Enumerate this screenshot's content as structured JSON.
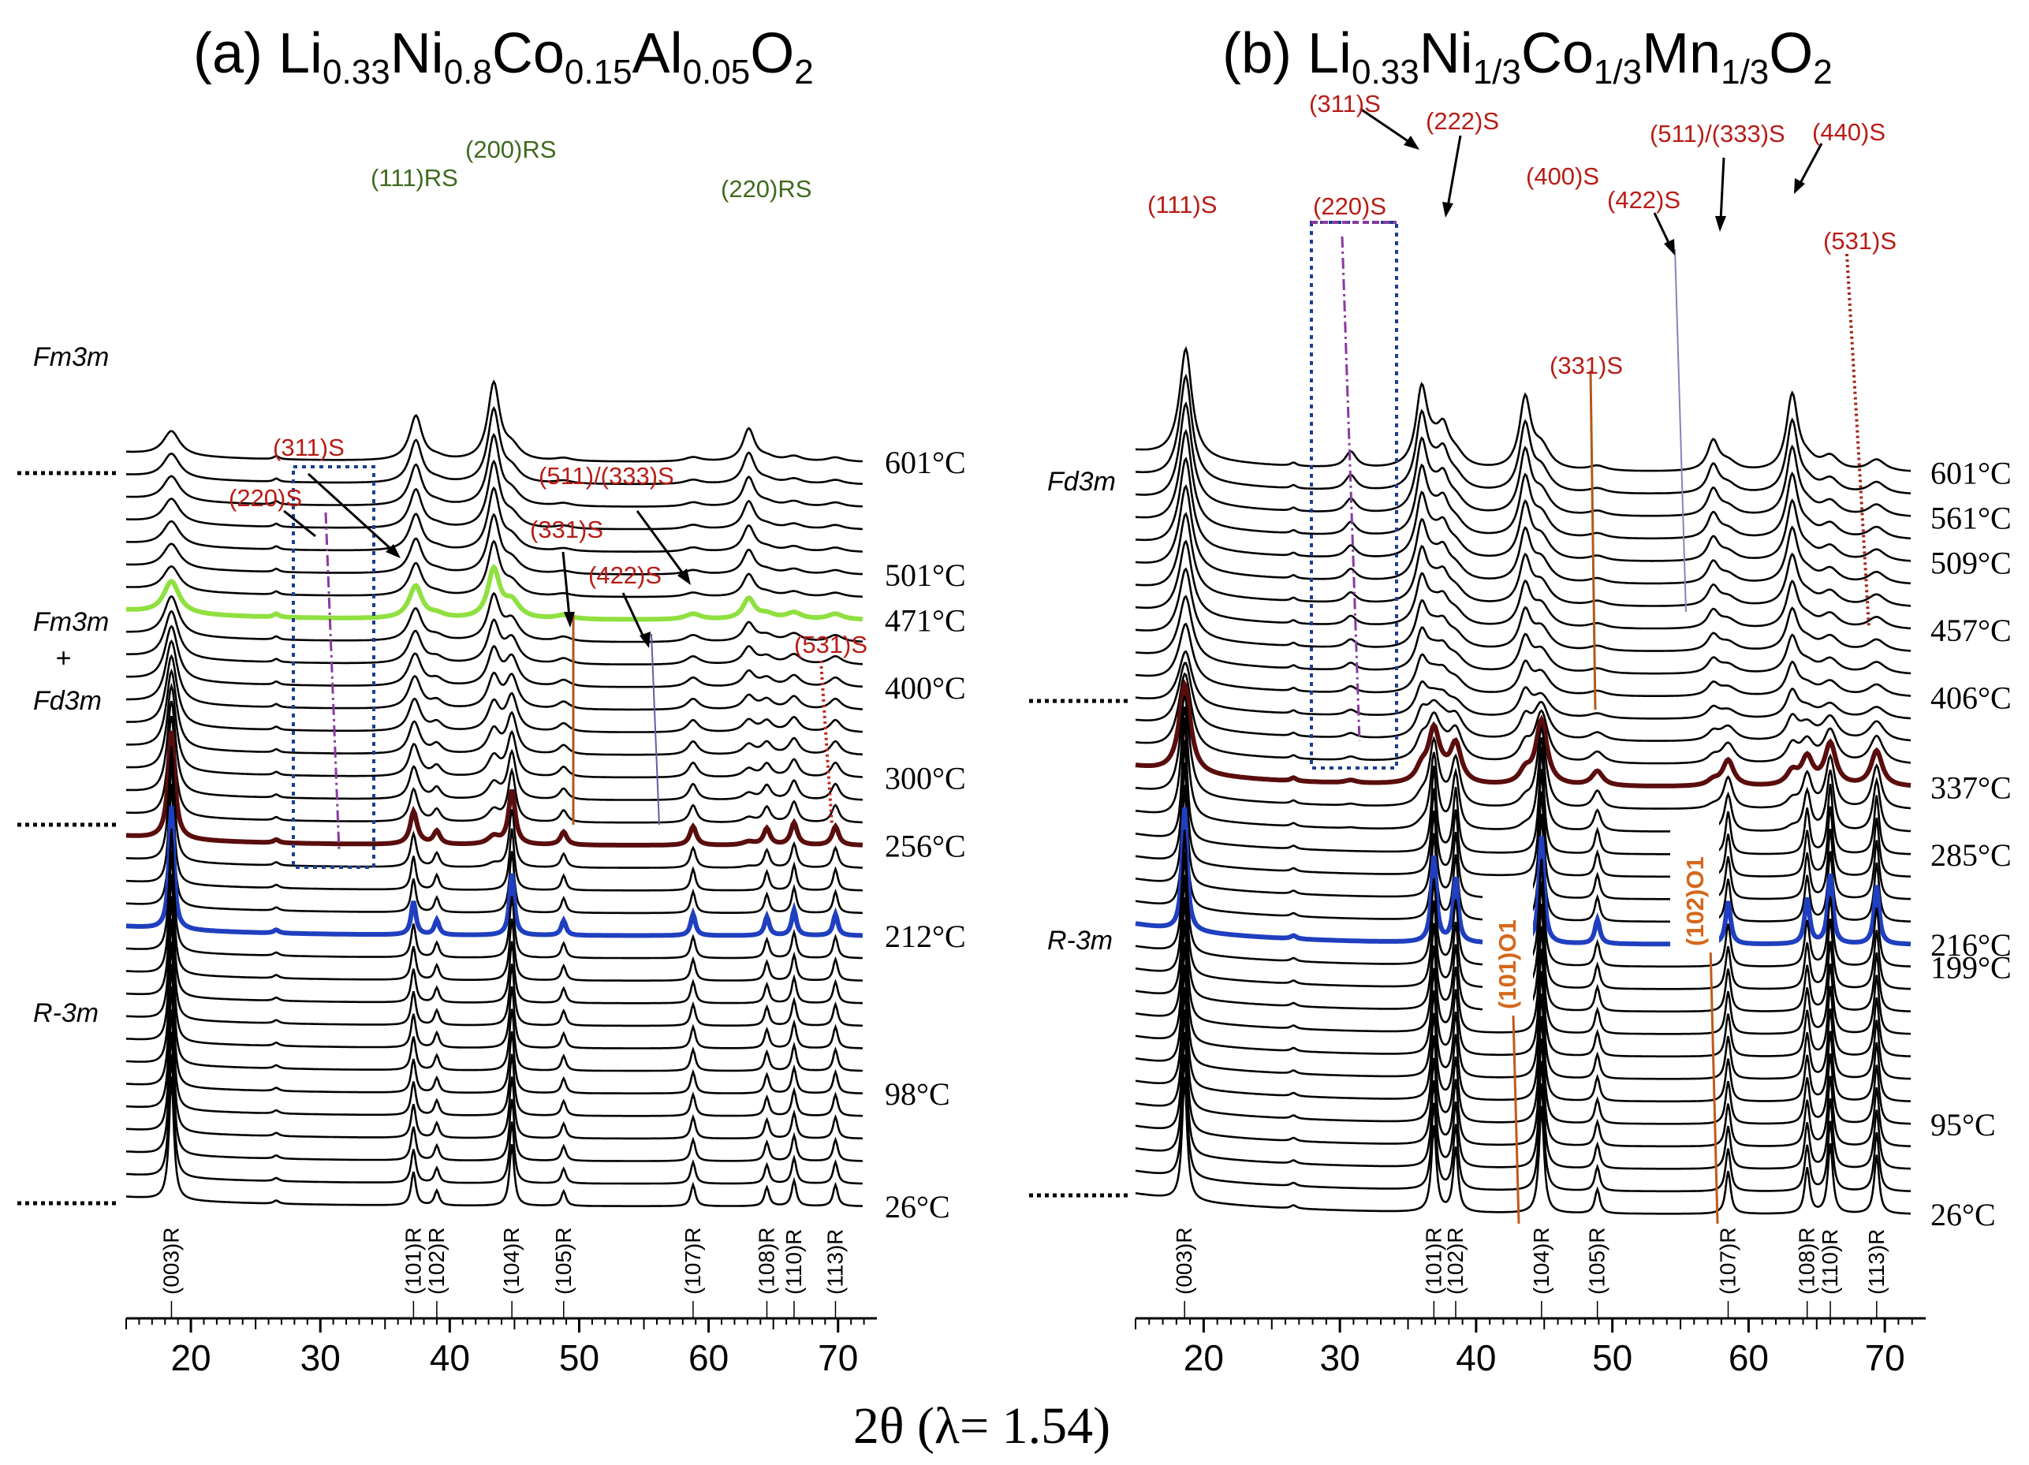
{
  "chart_data": [
    {
      "id": "a",
      "type": "line",
      "title": "(a) Li0.33Ni0.8Co0.15Al0.05O2",
      "title_parts": {
        "prefix": "(a) Li",
        "s1": "0.33",
        "t1": "Ni",
        "s2": "0.8",
        "t2": "Co",
        "s3": "0.15",
        "t3": "Al",
        "s4": "0.05",
        "t4": "O",
        "s5": "2"
      },
      "xlabel": "2θ (λ= 1.54)",
      "xlim": [
        15,
        73
      ],
      "xticks": [
        "20",
        "30",
        "40",
        "50",
        "60",
        "70"
      ],
      "n_scans": 34,
      "temperatures": [
        {
          "label": "26°C",
          "scan": 0
        },
        {
          "label": "98°C",
          "scan": 5
        },
        {
          "label": "212°C",
          "scan": 12
        },
        {
          "label": "256°C",
          "scan": 16
        },
        {
          "label": "300°C",
          "scan": 19
        },
        {
          "label": "400°C",
          "scan": 23
        },
        {
          "label": "471°C",
          "scan": 26
        },
        {
          "label": "501°C",
          "scan": 28
        },
        {
          "label": "601°C",
          "scan": 33
        }
      ],
      "highlighted_scans": [
        {
          "scan": 12,
          "color": "#1f3fbf"
        },
        {
          "scan": 16,
          "color": "#5a0d0d"
        },
        {
          "scan": 26,
          "color": "#8fe040"
        }
      ],
      "phase_regions": [
        {
          "label": "R-3m"
        },
        {
          "label": "Fm3m"
        },
        {
          "label": "+"
        },
        {
          "label": "Fd3m"
        },
        {
          "label": "Fm3m"
        }
      ],
      "layered_peaks": [
        {
          "label": "(003)R",
          "pos": 18.5,
          "h": 4.6
        },
        {
          "label": "(101)R",
          "pos": 37.2,
          "h": 1.25
        },
        {
          "label": "(102)R",
          "pos": 39.0,
          "h": 0.55
        },
        {
          "label": "(104)R",
          "pos": 44.8,
          "h": 2.3
        },
        {
          "label": "(105)R",
          "pos": 48.8,
          "h": 0.55
        },
        {
          "label": "(107)R",
          "pos": 58.8,
          "h": 0.8
        },
        {
          "label": "(108)R",
          "pos": 64.5,
          "h": 0.7
        },
        {
          "label": "(110)R",
          "pos": 66.6,
          "h": 0.95
        },
        {
          "label": "(113)R",
          "pos": 69.8,
          "h": 0.8
        }
      ],
      "rocksalt_peaks": [
        {
          "label": "(111)RS",
          "pos": 37.4,
          "h": 1.3
        },
        {
          "label": "(200)RS",
          "pos": 43.4,
          "h": 2.6
        },
        {
          "label": "(220)RS",
          "pos": 63.1,
          "h": 1.1
        }
      ],
      "spinel_labels": [
        "(220)S",
        "(311)S",
        "(331)S",
        "(422)S",
        "(511)/(333)S",
        "(531)S"
      ]
    },
    {
      "id": "b",
      "type": "line",
      "title": "(b) Li0.33Ni1/3Co1/3Mn1/3O2",
      "title_parts": {
        "prefix": "(b) Li",
        "s1": "0.33",
        "t1": "Ni",
        "s2": "1/3",
        "t2": "Co",
        "s3": "1/3",
        "t3": "Mn",
        "s4": "1/3",
        "t4": "O",
        "s5": "2"
      },
      "xlabel": "2θ (λ= 1.54)",
      "xlim": [
        15,
        73
      ],
      "xticks": [
        "20",
        "30",
        "40",
        "50",
        "60",
        "70"
      ],
      "n_scans": 34,
      "temperatures": [
        {
          "label": "26°C",
          "scan": 0
        },
        {
          "label": "95°C",
          "scan": 4
        },
        {
          "label": "199°C",
          "scan": 11
        },
        {
          "label": "216°C",
          "scan": 12
        },
        {
          "label": "285°C",
          "scan": 16
        },
        {
          "label": "337°C",
          "scan": 19
        },
        {
          "label": "406°C",
          "scan": 23
        },
        {
          "label": "457°C",
          "scan": 26
        },
        {
          "label": "509°C",
          "scan": 29
        },
        {
          "label": "561°C",
          "scan": 31
        },
        {
          "label": "601°C",
          "scan": 33
        }
      ],
      "highlighted_scans": [
        {
          "scan": 12,
          "color": "#1f3fbf"
        },
        {
          "scan": 19,
          "color": "#5a0d0d"
        }
      ],
      "phase_regions": [
        {
          "label": "R-3m"
        },
        {
          "label": "Fd3m"
        }
      ],
      "layered_peaks": [
        {
          "label": "(003)R",
          "pos": 18.6,
          "h": 4.6
        },
        {
          "label": "(101)R",
          "pos": 36.9,
          "h": 3.2
        },
        {
          "label": "(102)R",
          "pos": 38.5,
          "h": 2.4
        },
        {
          "label": "(104)R",
          "pos": 44.8,
          "h": 4.0
        },
        {
          "label": "(105)R",
          "pos": 48.9,
          "h": 0.9
        },
        {
          "label": "(107)R",
          "pos": 58.5,
          "h": 1.6
        },
        {
          "label": "(108)R",
          "pos": 64.3,
          "h": 1.7
        },
        {
          "label": "(110)R",
          "pos": 66.0,
          "h": 2.6
        },
        {
          "label": "(113)R",
          "pos": 69.4,
          "h": 2.2
        }
      ],
      "o1_labels": [
        "(101)O1",
        "(102)O1"
      ],
      "spinel_labels": [
        "(111)S",
        "(220)S",
        "(311)S",
        "(222)S",
        "(400)S",
        "(331)S",
        "(422)S",
        "(511)/(333)S",
        "(440)S",
        "(531)S"
      ]
    }
  ]
}
